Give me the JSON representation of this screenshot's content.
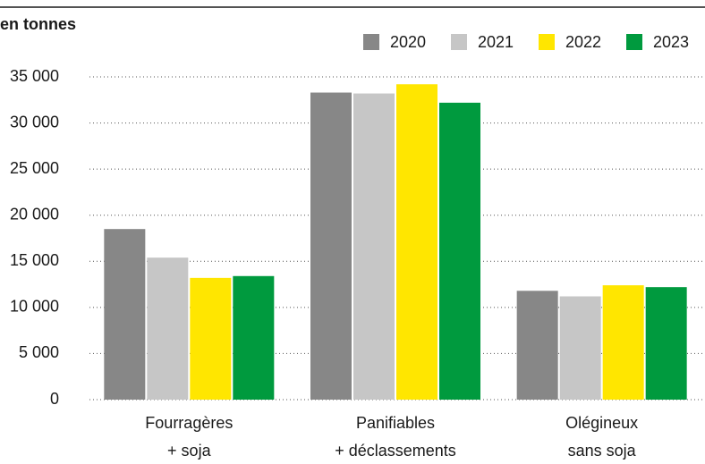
{
  "chart_data": {
    "type": "bar",
    "subtitle": "en tonnes",
    "categories": [
      [
        "Fourragères",
        "+ soja"
      ],
      [
        "Panifiables",
        "+ déclassements"
      ],
      [
        "Olégineux",
        "sans soja"
      ]
    ],
    "series": [
      {
        "name": "2020",
        "color": "#878787",
        "values": [
          18500,
          33300,
          11800
        ]
      },
      {
        "name": "2021",
        "color": "#c6c6c6",
        "values": [
          15400,
          33200,
          11200
        ]
      },
      {
        "name": "2022",
        "color": "#ffe600",
        "values": [
          13200,
          34200,
          12400
        ]
      },
      {
        "name": "2023",
        "color": "#009a3e",
        "values": [
          13400,
          32200,
          12200
        ]
      }
    ],
    "ylim": [
      0,
      35000
    ],
    "yticks": [
      0,
      {
        "value": 5000,
        "label": "5 000"
      },
      {
        "value": 10000,
        "label": "10 000"
      },
      {
        "value": 15000,
        "label": "15 000"
      },
      {
        "value": 20000,
        "label": "20 000"
      },
      {
        "value": 25000,
        "label": "25 000"
      },
      {
        "value": 30000,
        "label": "30 000"
      },
      {
        "value": 35000,
        "label": "35 000"
      }
    ],
    "grid": true
  }
}
